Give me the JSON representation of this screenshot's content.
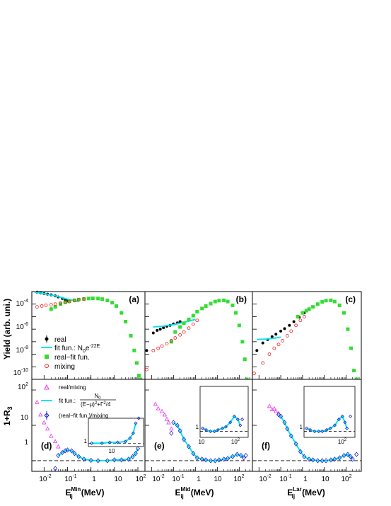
{
  "figure": {
    "top_ylabel": "Yield (arb. uni.)",
    "bottom_ylabel": "1+R",
    "bottom_ylabel_sub": "3",
    "xlabels": [
      {
        "main": "E",
        "sub": "ij",
        "sup": "Min",
        "unit": "(MeV)"
      },
      {
        "main": "E",
        "sub": "ij",
        "sup": "Mid",
        "unit": "(MeV)"
      },
      {
        "main": "E",
        "sub": "ij",
        "sup": "Lar",
        "unit": "(MeV)"
      }
    ],
    "panel_tags": [
      "(a)",
      "(b)",
      "(c)",
      "(d)",
      "(e)",
      "(f)"
    ],
    "top_yticks": [
      {
        "base": "10",
        "exp": "-4"
      },
      {
        "base": "10",
        "exp": "-6"
      },
      {
        "base": "10",
        "exp": "-8"
      },
      {
        "base": "10",
        "exp": "-10"
      }
    ],
    "bottom_yticks": [
      {
        "base": "10",
        "exp": "2"
      },
      {
        "base": "10",
        "exp": ""
      },
      {
        "base": "1",
        "exp": ""
      }
    ],
    "xticks_a": [
      {
        "base": "10",
        "exp": "-2"
      },
      {
        "base": "10",
        "exp": "-1"
      },
      {
        "base": "1",
        "exp": ""
      },
      {
        "base": "10",
        "exp": ""
      },
      {
        "base": "10",
        "exp": "2"
      }
    ],
    "xticks_bc": [
      {
        "base": "10",
        "exp": "-2"
      },
      {
        "base": "10",
        "exp": "-1"
      },
      {
        "base": "1",
        "exp": ""
      },
      {
        "base": "10",
        "exp": ""
      },
      {
        "base": "10",
        "exp": "2"
      }
    ],
    "inset_labels": {
      "d_x": "10",
      "d_y": "1",
      "e_x1": "10",
      "e_x2": "10",
      "e_x2_exp": "2",
      "e_y": "1",
      "f_x": "10",
      "f_x_exp": "2",
      "f_y": "1"
    },
    "colors": {
      "real": "#000000",
      "fit": "#00e5ee",
      "real_minus_fit": "#33dd33",
      "mixing": "#ee2222",
      "ratio": "#ee33ee",
      "corrected": "#2222cc"
    }
  },
  "legend_top": {
    "real": "real",
    "fit_prefix": "fit fun.: N",
    "fit_sub": "0",
    "fit_e": "e",
    "fit_exp": "-22E",
    "real_fit": "real−fit fun.",
    "mixing": "mixing"
  },
  "legend_bottom": {
    "ratio": "real/mixing",
    "fit_prefix": "fit fun.: ",
    "fit_num": "N",
    "fit_num_sub": "0",
    "fit_den": "(E−μ)",
    "fit_den_sup": "2",
    "fit_den_rest": "+Γ",
    "fit_den_sup2": "2",
    "fit_den_end": "/4",
    "corrected": "(real−fit fun.)/mixing"
  },
  "chart_data": [
    {
      "panel": "a",
      "type": "scatter",
      "xscale": "log",
      "yscale": "log",
      "xlim": [
        0.003,
        200
      ],
      "ylim": [
        1e-10,
        0.001
      ],
      "series": [
        {
          "name": "real",
          "color": "#000000",
          "marker": "circle",
          "x": [
            0.005,
            0.007,
            0.01,
            0.014,
            0.02,
            0.03,
            0.04,
            0.06,
            0.08,
            0.1
          ],
          "y": [
            0.0009,
            0.0008,
            0.0007,
            0.00062,
            0.00055,
            0.00045,
            0.00037,
            0.00028,
            0.00022,
            0.00018
          ]
        },
        {
          "name": "fit fun.",
          "color": "#00e5ee",
          "type": "line",
          "x": [
            0.004,
            0.01,
            0.03,
            0.1,
            0.3
          ],
          "y": [
            0.0009,
            0.0007,
            0.00045,
            0.00025,
            0.00016
          ]
        },
        {
          "name": "real−fit fun.",
          "color": "#33dd33",
          "marker": "square",
          "x": [
            0.02,
            0.03,
            0.05,
            0.08,
            0.12,
            0.2,
            0.3,
            0.5,
            0.8,
            1.2,
            2,
            3,
            5,
            8,
            12,
            20,
            30,
            50,
            70,
            90,
            110,
            130
          ],
          "y": [
            4e-05,
            6e-05,
            0.0001,
            0.00014,
            0.00017,
            0.0002,
            0.00023,
            0.00026,
            0.00028,
            0.00029,
            0.00028,
            0.00025,
            0.0002,
            0.00013,
            7e-05,
            2e-05,
            4e-06,
            3e-07,
            2e-08,
            2e-09,
            2e-10,
            1e-10
          ]
        },
        {
          "name": "mixing",
          "color": "#ee2222",
          "marker": "open-circle",
          "x": [
            0.005,
            0.008,
            0.012,
            0.02,
            0.03,
            0.05,
            0.08,
            0.12,
            0.2,
            0.3,
            0.5
          ],
          "y": [
            6e-05,
            7e-05,
            8e-05,
            9e-05,
            0.0001,
            0.00012,
            0.00014,
            0.00016,
            0.00019,
            0.00022,
            0.00025
          ]
        }
      ]
    },
    {
      "panel": "b",
      "type": "scatter",
      "xscale": "log",
      "yscale": "log",
      "xlim": [
        0.005,
        400
      ],
      "ylim": [
        1e-10,
        0.001
      ],
      "series": [
        {
          "name": "real",
          "color": "#000000",
          "marker": "circle",
          "x": [
            0.006,
            0.012,
            0.018,
            0.025,
            0.035,
            0.05,
            0.07,
            0.1,
            0.15,
            0.2
          ],
          "y": [
            2e-08,
            5e-07,
            8e-07,
            1e-06,
            1.3e-06,
            1.7e-06,
            2e-06,
            2.6e-06,
            3.2e-06,
            4e-06
          ]
        },
        {
          "name": "fit fun.",
          "color": "#00e5ee",
          "type": "line",
          "x": [
            0.012,
            0.03,
            0.1,
            0.3,
            1
          ],
          "y": [
            1.5e-06,
            1.7e-06,
            2.3e-06,
            3.5e-06,
            6e-06
          ]
        },
        {
          "name": "real−fit fun.",
          "color": "#33dd33",
          "marker": "square",
          "x": [
            0.08,
            0.12,
            0.2,
            0.3,
            0.5,
            0.8,
            1.2,
            2,
            3,
            5,
            8,
            12,
            20,
            30,
            50,
            70,
            100,
            140,
            180,
            220
          ],
          "y": [
            1e-07,
            6e-07,
            1.5e-06,
            3e-06,
            6e-06,
            1.2e-05,
            2.5e-05,
            4.5e-05,
            7e-05,
            0.00011,
            0.00016,
            0.00019,
            0.0002,
            0.00016,
            8e-05,
            2e-05,
            2e-06,
            1e-07,
            4e-09,
            1e-10
          ]
        },
        {
          "name": "mixing",
          "color": "#ee2222",
          "marker": "open-circle",
          "x": [
            0.006,
            0.012,
            0.02,
            0.03,
            0.05,
            0.08,
            0.12,
            0.2,
            0.3,
            0.5,
            0.8,
            1.2
          ],
          "y": [
            6e-10,
            2e-08,
            3e-08,
            4.5e-08,
            7e-08,
            1.2e-07,
            2e-07,
            3.5e-07,
            6e-07,
            1.2e-06,
            2.5e-06,
            5e-06
          ]
        }
      ]
    },
    {
      "panel": "c",
      "type": "scatter",
      "xscale": "log",
      "yscale": "log",
      "xlim": [
        0.005,
        500
      ],
      "ylim": [
        1e-10,
        0.001
      ],
      "series": [
        {
          "name": "real",
          "color": "#000000",
          "marker": "circle",
          "x": [
            0.008,
            0.015,
            0.025,
            0.04,
            0.06,
            0.1,
            0.15,
            0.25,
            0.4,
            0.7,
            1.2,
            2
          ],
          "y": [
            2e-08,
            8e-08,
            1.5e-07,
            2.5e-07,
            4e-07,
            7e-07,
            1.1e-06,
            2e-06,
            4e-06,
            9e-06,
            2e-05,
            4e-05
          ]
        },
        {
          "name": "fit fun.",
          "color": "#00e5ee",
          "type": "line",
          "x": [
            0.008,
            0.02,
            0.05,
            0.1
          ],
          "y": [
            1.5e-07,
            1.6e-07,
            1.9e-07,
            2.3e-07
          ]
        },
        {
          "name": "real−fit fun.",
          "color": "#33dd33",
          "marker": "square",
          "x": [
            0.6,
            1,
            1.5,
            2,
            3,
            5,
            8,
            12,
            20,
            30,
            50,
            80,
            120,
            170,
            230,
            300
          ],
          "y": [
            1e-05,
            2e-05,
            3e-05,
            4e-05,
            6e-05,
            0.0001,
            0.00015,
            0.00019,
            0.0002,
            0.00016,
            8e-05,
            2e-05,
            1e-06,
            3e-08,
            5e-10,
            1e-10
          ]
        },
        {
          "name": "mixing",
          "color": "#ee2222",
          "marker": "open-circle",
          "x": [
            0.006,
            0.015,
            0.03,
            0.05,
            0.08,
            0.12,
            0.2,
            0.3,
            0.5,
            0.8,
            1.2
          ],
          "y": [
            3e-10,
            2e-09,
            1e-08,
            3e-08,
            6e-08,
            1.2e-07,
            3e-07,
            7e-07,
            2e-06,
            5e-06,
            1e-05
          ]
        }
      ]
    },
    {
      "panel": "d",
      "type": "scatter",
      "xscale": "log",
      "yscale": "log",
      "xlim": [
        0.003,
        200
      ],
      "ylim": [
        0.5,
        200
      ],
      "hline": 1,
      "series": [
        {
          "name": "real/mixing",
          "color": "#ee33ee",
          "marker": "open-triangle",
          "x": [
            0.005,
            0.007,
            0.01,
            0.014,
            0.02,
            0.03,
            0.04
          ],
          "y": [
            45,
            20,
            12,
            8,
            5,
            3.5,
            2.5
          ]
        },
        {
          "name": "fit fun.",
          "color": "#00e5ee",
          "type": "line",
          "x": [
            0.04,
            0.06,
            0.08,
            0.1,
            0.15,
            0.2,
            0.3,
            0.5,
            1,
            2,
            5,
            10,
            20,
            40,
            60,
            80,
            100
          ],
          "y": [
            1.4,
            1.7,
            1.9,
            2,
            1.9,
            1.6,
            1.3,
            1.1,
            1.02,
            1,
            1,
            1.05,
            1.05,
            1.1,
            1.3,
            1.6,
            2.2
          ]
        },
        {
          "name": "(real−fit fun.)/mixing",
          "color": "#2222cc",
          "marker": "open-diamond",
          "x": [
            0.03,
            0.04,
            0.06,
            0.08,
            0.1,
            0.15,
            0.2,
            0.3,
            0.5,
            1,
            2,
            5,
            10,
            20,
            40,
            60,
            80,
            100,
            130
          ],
          "y": [
            0.6,
            1.4,
            1.7,
            1.9,
            2,
            1.9,
            1.6,
            1.3,
            1.1,
            1.02,
            1,
            1,
            1.05,
            1.05,
            1.1,
            1.3,
            1.6,
            2.2,
            3.5
          ]
        }
      ]
    },
    {
      "panel": "e",
      "type": "scatter",
      "xscale": "log",
      "yscale": "log",
      "xlim": [
        0.005,
        400
      ],
      "ylim": [
        0.5,
        200
      ],
      "hline": 1,
      "series": [
        {
          "name": "real/mixing",
          "color": "#ee33ee",
          "marker": "open-triangle",
          "x": [
            0.015,
            0.02,
            0.03,
            0.04,
            0.05,
            0.06,
            0.08
          ],
          "y": [
            40,
            30,
            25,
            20,
            15,
            12,
            8
          ]
        },
        {
          "name": "fit fun.",
          "color": "#00e5ee",
          "type": "line",
          "x": [
            0.1,
            0.15,
            0.2,
            0.3,
            0.5,
            0.8,
            1.2,
            2,
            3,
            5,
            8,
            12,
            20,
            30,
            50,
            80,
            120,
            160
          ],
          "y": [
            12,
            10,
            7,
            4,
            2.5,
            1.6,
            1.2,
            1.1,
            1.05,
            1,
            1,
            1.05,
            1.1,
            1.15,
            1.3,
            1.5,
            1.4,
            1.2
          ]
        },
        {
          "name": "(real−fit fun.)/mixing",
          "color": "#2222cc",
          "marker": "open-diamond",
          "x": [
            0.08,
            0.1,
            0.15,
            0.2,
            0.3,
            0.5,
            0.8,
            1.2,
            2,
            3,
            5,
            8,
            12,
            20,
            30,
            50,
            80,
            120,
            160,
            200
          ],
          "y": [
            6,
            12,
            10,
            7,
            4,
            2.5,
            1.6,
            1.2,
            1.1,
            1.05,
            1,
            1,
            1.05,
            1.1,
            1.15,
            1.3,
            1.5,
            1.4,
            1.2,
            1.4
          ]
        }
      ]
    },
    {
      "panel": "f",
      "type": "scatter",
      "xscale": "log",
      "yscale": "log",
      "xlim": [
        0.005,
        500
      ],
      "ylim": [
        0.5,
        200
      ],
      "hline": 1,
      "series": [
        {
          "name": "real/mixing",
          "color": "#ee33ee",
          "marker": "open-triangle",
          "x": [
            0.03,
            0.04,
            0.05,
            0.06,
            0.08
          ],
          "y": [
            35,
            28,
            30,
            25,
            22
          ]
        },
        {
          "name": "fit fun.",
          "color": "#00e5ee",
          "type": "line",
          "x": [
            0.08,
            0.1,
            0.15,
            0.2,
            0.3,
            0.5,
            0.8,
            1.2,
            2,
            3,
            5,
            8,
            12,
            20,
            30,
            50,
            80,
            120,
            160,
            200
          ],
          "y": [
            20,
            18,
            12,
            8,
            5,
            3,
            1.8,
            1.3,
            1.1,
            1.05,
            1,
            1,
            1,
            1.05,
            1.1,
            1.2,
            1.4,
            1.5,
            1.3,
            1.1
          ]
        },
        {
          "name": "(real−fit fun.)/mixing",
          "color": "#2222cc",
          "marker": "open-diamond",
          "x": [
            0.08,
            0.1,
            0.15,
            0.2,
            0.3,
            0.5,
            0.8,
            1.2,
            2,
            3,
            5,
            8,
            12,
            20,
            30,
            50,
            80,
            120,
            160,
            200,
            300
          ],
          "y": [
            20,
            18,
            12,
            8,
            5,
            3,
            1.8,
            1.3,
            1.1,
            1.05,
            1,
            1,
            1,
            1.05,
            1.1,
            1.2,
            1.4,
            1.5,
            1.3,
            1.1,
            1.5
          ]
        }
      ]
    }
  ]
}
